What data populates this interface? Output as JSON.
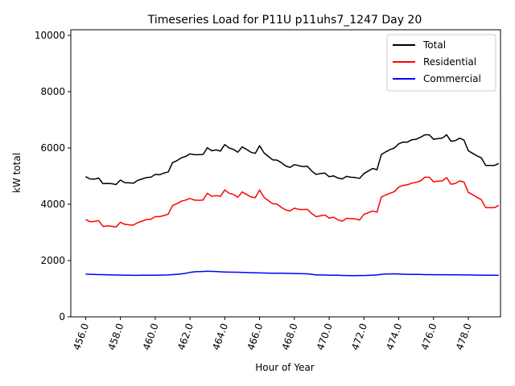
{
  "chart_data": {
    "type": "line",
    "title": "Timeseries Load for P11U p11uhs7_1247  Day 20",
    "xlabel": "Hour of Year",
    "ylabel": "kW total",
    "xlim": [
      455.15,
      479.85
    ],
    "ylim": [
      0,
      10200
    ],
    "xticks": [
      456.0,
      458.0,
      460.0,
      462.0,
      464.0,
      466.0,
      468.0,
      470.0,
      472.0,
      474.0,
      476.0,
      478.0
    ],
    "xtick_labels": [
      "456.0",
      "458.0",
      "460.0",
      "462.0",
      "464.0",
      "466.0",
      "468.0",
      "470.0",
      "472.0",
      "474.0",
      "476.0",
      "478.0"
    ],
    "yticks": [
      0,
      2000,
      4000,
      6000,
      8000,
      10000
    ],
    "ytick_labels": [
      "0",
      "2000",
      "4000",
      "6000",
      "8000",
      "10000"
    ],
    "legend_position": "top-right",
    "x": [
      456.0,
      456.25,
      456.5,
      456.75,
      457.0,
      457.25,
      457.5,
      457.75,
      458.0,
      458.25,
      458.5,
      458.75,
      459.0,
      459.25,
      459.5,
      459.75,
      460.0,
      460.25,
      460.5,
      460.75,
      461.0,
      461.25,
      461.5,
      461.75,
      462.0,
      462.25,
      462.5,
      462.75,
      463.0,
      463.25,
      463.5,
      463.75,
      464.0,
      464.25,
      464.5,
      464.75,
      465.0,
      465.25,
      465.5,
      465.75,
      466.0,
      466.25,
      466.5,
      466.75,
      467.0,
      467.25,
      467.5,
      467.75,
      468.0,
      468.25,
      468.5,
      468.75,
      469.0,
      469.25,
      469.5,
      469.75,
      470.0,
      470.25,
      470.5,
      470.75,
      471.0,
      471.25,
      471.5,
      471.75,
      472.0,
      472.25,
      472.5,
      472.75,
      473.0,
      473.25,
      473.5,
      473.75,
      474.0,
      474.25,
      474.5,
      474.75,
      475.0,
      475.25,
      475.5,
      475.75,
      476.0,
      476.25,
      476.5,
      476.75,
      477.0,
      477.25,
      477.5,
      477.75,
      478.0,
      478.25,
      478.5,
      478.75,
      479.0,
      479.25,
      479.5,
      479.75
    ],
    "series": [
      {
        "name": "Total",
        "color": "#000000",
        "values": [
          4980,
          4900,
          4890,
          4930,
          4730,
          4740,
          4730,
          4700,
          4860,
          4770,
          4760,
          4750,
          4850,
          4900,
          4950,
          4960,
          5060,
          5050,
          5110,
          5150,
          5480,
          5550,
          5650,
          5700,
          5790,
          5760,
          5760,
          5770,
          6010,
          5900,
          5930,
          5890,
          6120,
          6000,
          5950,
          5850,
          6040,
          5950,
          5850,
          5810,
          6080,
          5830,
          5700,
          5580,
          5570,
          5480,
          5360,
          5310,
          5410,
          5370,
          5340,
          5350,
          5180,
          5060,
          5090,
          5110,
          4980,
          5010,
          4930,
          4900,
          4990,
          4960,
          4950,
          4920,
          5090,
          5180,
          5270,
          5230,
          5770,
          5860,
          5940,
          6000,
          6150,
          6210,
          6210,
          6290,
          6310,
          6380,
          6470,
          6470,
          6310,
          6330,
          6350,
          6470,
          6240,
          6260,
          6350,
          6280,
          5900,
          5810,
          5720,
          5650,
          5380,
          5380,
          5380,
          5450
        ]
      },
      {
        "name": "Residential",
        "color": "#ff0000",
        "values": [
          3460,
          3380,
          3390,
          3420,
          3210,
          3230,
          3220,
          3190,
          3360,
          3290,
          3270,
          3260,
          3350,
          3400,
          3460,
          3470,
          3560,
          3560,
          3600,
          3650,
          3960,
          4020,
          4110,
          4150,
          4210,
          4150,
          4140,
          4150,
          4390,
          4280,
          4310,
          4280,
          4510,
          4390,
          4350,
          4250,
          4440,
          4350,
          4260,
          4230,
          4510,
          4250,
          4130,
          4020,
          4010,
          3890,
          3800,
          3760,
          3860,
          3820,
          3810,
          3820,
          3670,
          3560,
          3590,
          3620,
          3510,
          3540,
          3450,
          3400,
          3500,
          3490,
          3480,
          3440,
          3640,
          3700,
          3760,
          3720,
          4260,
          4330,
          4390,
          4450,
          4610,
          4670,
          4690,
          4750,
          4780,
          4830,
          4960,
          4960,
          4800,
          4820,
          4830,
          4950,
          4710,
          4740,
          4830,
          4790,
          4420,
          4340,
          4250,
          4160,
          3880,
          3880,
          3880,
          3960
        ]
      },
      {
        "name": "Commercial",
        "color": "#0000ff",
        "values": [
          1520,
          1510,
          1505,
          1500,
          1500,
          1495,
          1490,
          1485,
          1485,
          1480,
          1478,
          1475,
          1475,
          1476,
          1478,
          1480,
          1480,
          1482,
          1485,
          1490,
          1500,
          1510,
          1525,
          1545,
          1580,
          1600,
          1605,
          1610,
          1620,
          1615,
          1610,
          1600,
          1595,
          1590,
          1585,
          1585,
          1580,
          1575,
          1570,
          1565,
          1560,
          1558,
          1555,
          1552,
          1550,
          1548,
          1545,
          1542,
          1540,
          1535,
          1530,
          1528,
          1510,
          1490,
          1488,
          1485,
          1480,
          1480,
          1478,
          1472,
          1468,
          1465,
          1465,
          1468,
          1470,
          1475,
          1480,
          1490,
          1510,
          1520,
          1525,
          1528,
          1520,
          1515,
          1510,
          1508,
          1505,
          1505,
          1500,
          1500,
          1498,
          1497,
          1497,
          1496,
          1495,
          1493,
          1492,
          1490,
          1488,
          1486,
          1484,
          1482,
          1480,
          1478,
          1476,
          1475
        ]
      }
    ]
  }
}
